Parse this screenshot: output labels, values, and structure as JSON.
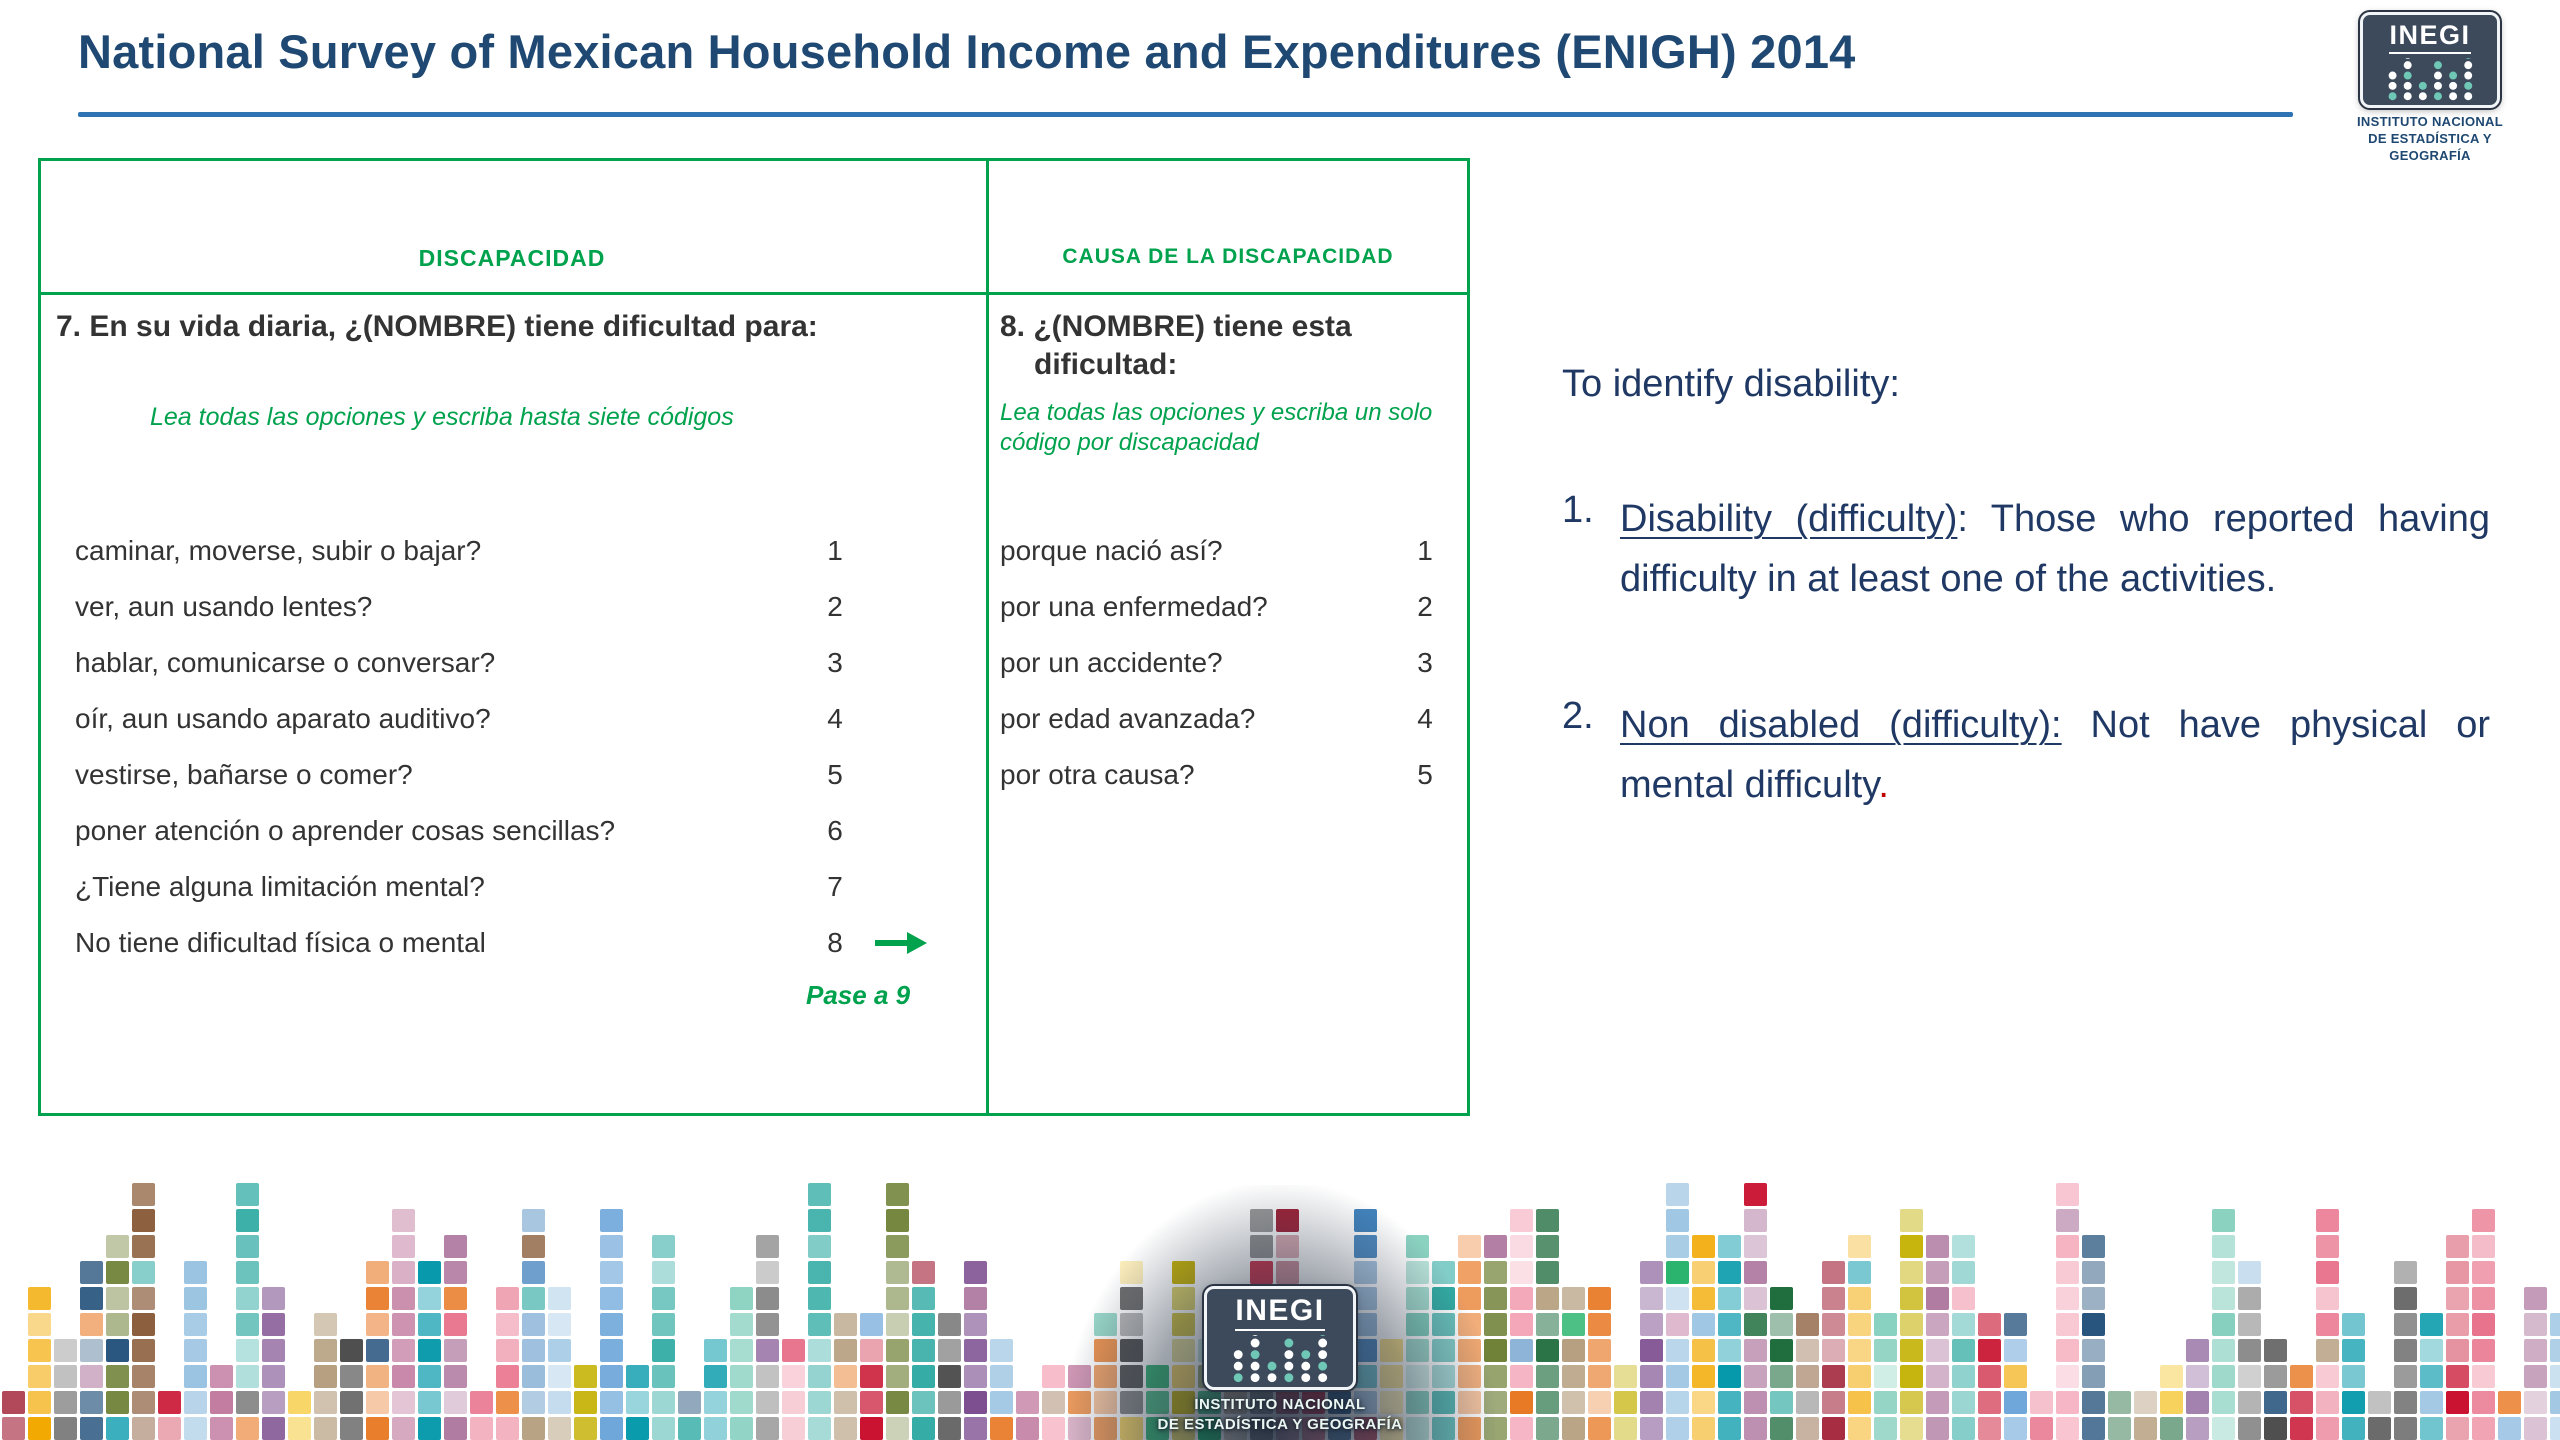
{
  "header": {
    "title": "National Survey of Mexican Household Income and Expenditures (ENIGH) 2014"
  },
  "logo": {
    "acronym": "INEGI",
    "subtitle_line1": "INSTITUTO NACIONAL",
    "subtitle_line2": "DE ESTADÍSTICA Y GEOGRAFÍA"
  },
  "questionnaire": {
    "columns": {
      "left_header": "DISCAPACIDAD",
      "right_header": "CAUSA DE LA DISCAPACIDAD"
    },
    "q7": {
      "question": "7. En su vida diaria, ¿(NOMBRE) tiene dificultad para:",
      "instruction": "Lea todas las opciones y escriba hasta siete códigos",
      "options": [
        {
          "label": "caminar, moverse, subir o bajar?",
          "code": "1"
        },
        {
          "label": "ver, aun usando lentes?",
          "code": "2"
        },
        {
          "label": "hablar, comunicarse o conversar?",
          "code": "3"
        },
        {
          "label": "oír, aun usando aparato auditivo?",
          "code": "4"
        },
        {
          "label": "vestirse, bañarse o comer?",
          "code": "5"
        },
        {
          "label": "poner atención o aprender cosas sencillas?",
          "code": "6"
        },
        {
          "label": "¿Tiene alguna limitación mental?",
          "code": "7"
        },
        {
          "label": "No tiene dificultad física o mental",
          "code": "8",
          "arrow": true
        }
      ],
      "skip_note": "Pase a 9"
    },
    "q8": {
      "question": "8. ¿(NOMBRE) tiene esta dificultad:",
      "instruction": "Lea todas las opciones y escriba un solo código por discapacidad",
      "options": [
        {
          "label": "porque nació así?",
          "code": "1"
        },
        {
          "label": "por una enfermedad?",
          "code": "2"
        },
        {
          "label": "por un accidente?",
          "code": "3"
        },
        {
          "label": "por edad avanzada?",
          "code": "4"
        },
        {
          "label": "por otra causa?",
          "code": "5"
        }
      ]
    }
  },
  "notes": {
    "intro": "To identify disability:",
    "items": [
      {
        "number": "1.",
        "segments": [
          {
            "text": "Disability (difficulty)",
            "underline": true
          },
          {
            "text": ": Those who reported having difficulty in at least one of the activities.",
            "underline": false
          }
        ]
      },
      {
        "number": "2.",
        "segments": [
          {
            "text": "Non disabled (difficulty):",
            "underline": true
          },
          {
            "text": " Not have physical or mental difficulty",
            "underline": false
          },
          {
            "text": ".",
            "underline": false,
            "color": "red"
          }
        ]
      }
    ]
  },
  "colors": {
    "title_navy": "#1F4973",
    "rule_blue": "#2E74B5",
    "scan_green": "#00A24D",
    "scan_text": "#333333",
    "notes_navy": "#1F3864",
    "red": "#C00000",
    "logo_slate": "#3C4A5C",
    "logo_teal": "#6FC7B6"
  },
  "mosaic": {
    "palette": [
      "#C8102E",
      "#9E1B32",
      "#E8708A",
      "#F4A6B8",
      "#E87722",
      "#F2A900",
      "#F7D154",
      "#C4B000",
      "#708238",
      "#00A551",
      "#1D6B3C",
      "#7FCDBB",
      "#2AA8A0",
      "#0097A9",
      "#9BC4E2",
      "#5B9BD5",
      "#2E75B6",
      "#1F4E79",
      "#7C4D8F",
      "#B07AA1",
      "#C27BA0",
      "#8C8C8C",
      "#4D4D4D",
      "#B59E7E",
      "#8B5E3C"
    ]
  }
}
